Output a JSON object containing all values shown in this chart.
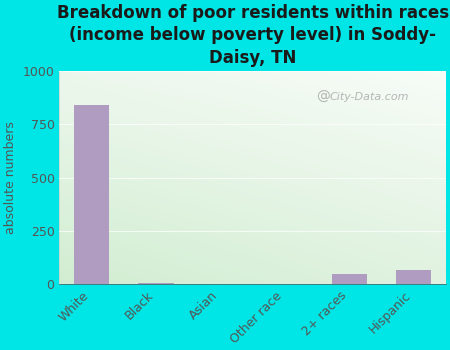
{
  "title": "Breakdown of poor residents within races\n(income below poverty level) in Soddy-\nDaisy, TN",
  "categories": [
    "White",
    "Black",
    "Asian",
    "Other race",
    "2+ races",
    "Hispanic"
  ],
  "values": [
    840,
    5,
    0,
    0,
    50,
    65
  ],
  "bar_color": "#b09cc0",
  "ylabel": "absolute numbers",
  "ylim": [
    0,
    1000
  ],
  "yticks": [
    0,
    250,
    500,
    750,
    1000
  ],
  "background_color": "#00e5e5",
  "watermark": "City-Data.com",
  "title_fontsize": 12,
  "axis_label_fontsize": 9,
  "tick_fontsize": 9,
  "tick_color": "#555555"
}
